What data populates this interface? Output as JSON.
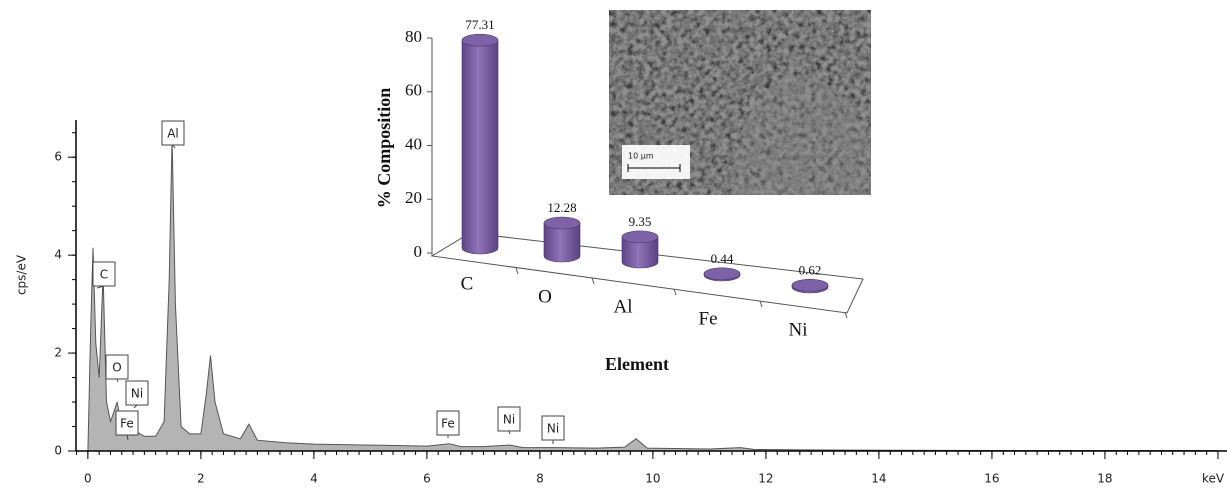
{
  "chart_data": [
    {
      "type": "area",
      "y_label": "cps/eV",
      "x": [
        0,
        0.05,
        0.09,
        0.14,
        0.2,
        0.27,
        0.33,
        0.4,
        0.52,
        0.6,
        0.7,
        0.85,
        1.0,
        1.2,
        1.35,
        1.44,
        1.49,
        1.55,
        1.65,
        1.8,
        2.0,
        2.1,
        2.17,
        2.25,
        2.4,
        2.7,
        2.85,
        3.0,
        3.5,
        4.0,
        5.0,
        6.0,
        6.4,
        6.6,
        7.0,
        7.47,
        7.7,
        8.3,
        9.0,
        9.5,
        9.7,
        9.9,
        11.0,
        11.55,
        11.8,
        13,
        16,
        20
      ],
      "values": [
        0,
        2.5,
        4.15,
        2.2,
        1.5,
        3.6,
        1.0,
        0.6,
        1.0,
        0.45,
        0.35,
        0.4,
        0.3,
        0.3,
        0.6,
        3.5,
        6.4,
        3.0,
        0.5,
        0.35,
        0.35,
        1.2,
        1.95,
        1.0,
        0.35,
        0.25,
        0.55,
        0.22,
        0.17,
        0.14,
        0.12,
        0.1,
        0.15,
        0.09,
        0.09,
        0.12,
        0.07,
        0.07,
        0.06,
        0.08,
        0.25,
        0.06,
        0.04,
        0.07,
        0.03,
        0.02,
        0.01,
        0.01
      ],
      "color": "#b4b4b4",
      "line_color": "#555555",
      "xlim": [
        -0.21,
        20.16
      ],
      "ylim": [
        0,
        6.76
      ],
      "xticks": [
        0,
        2,
        4,
        6,
        8,
        10,
        12,
        14,
        16,
        18,
        {
          "value": 20,
          "label": "keV"
        }
      ],
      "yticks": [
        0,
        2,
        4,
        6
      ],
      "x_minor_step": 0.2,
      "y_minor_step": 0.5,
      "annotations": [
        "C",
        "O",
        "Ni",
        "Fe",
        "Al",
        "Fe",
        "Ni",
        "Ni"
      ]
    },
    {
      "type": "bar3d",
      "y_label": "% Composition",
      "x_label": "Element",
      "categories": [
        "C",
        "O",
        "Al",
        "Fe",
        "Ni"
      ],
      "values": [
        77.31,
        12.28,
        9.35,
        0.44,
        0.62
      ],
      "color": "#7e62a8",
      "ylim": [
        0,
        80
      ],
      "yticks": [
        0,
        20,
        40,
        60,
        80
      ]
    }
  ],
  "image": {
    "scale_label": "10 µm"
  }
}
